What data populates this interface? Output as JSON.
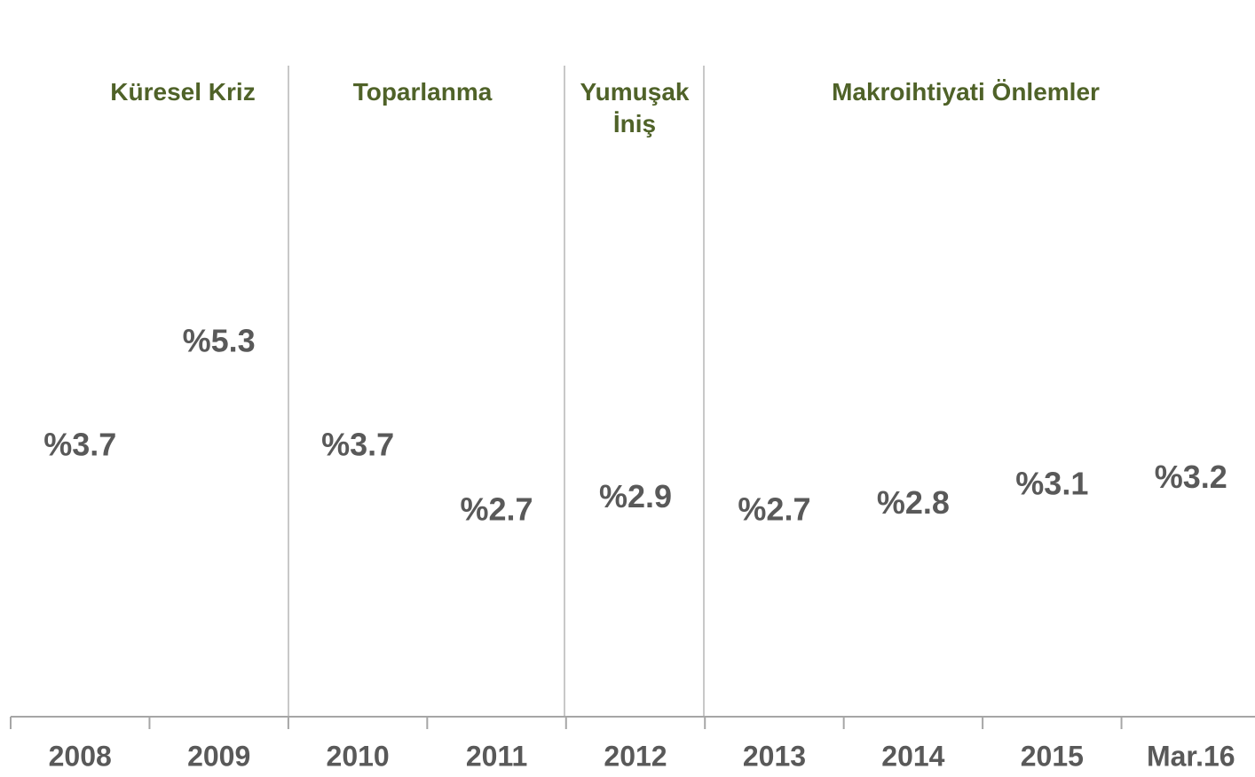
{
  "chart_data": {
    "type": "line",
    "categories": [
      "2008",
      "2009",
      "2010",
      "2011",
      "2012",
      "2013",
      "2014",
      "2015",
      "Mar.16"
    ],
    "series": [
      {
        "color": "#94b43b",
        "values": [
          3.7,
          5.3,
          3.7,
          2.7,
          2.9,
          2.7,
          2.8,
          3.1,
          3.2
        ],
        "value_labels": [
          "%3.7",
          "%5.3",
          "%3.7",
          "%2.7",
          "%2.9",
          "%2.7",
          "%2.8",
          "%3.1",
          "%3.2"
        ]
      }
    ],
    "annotations": [
      "Küresel Kriz",
      "Toparlanma",
      "Yumuşak İniş",
      "Makroihtiyati Önlemler"
    ]
  }
}
